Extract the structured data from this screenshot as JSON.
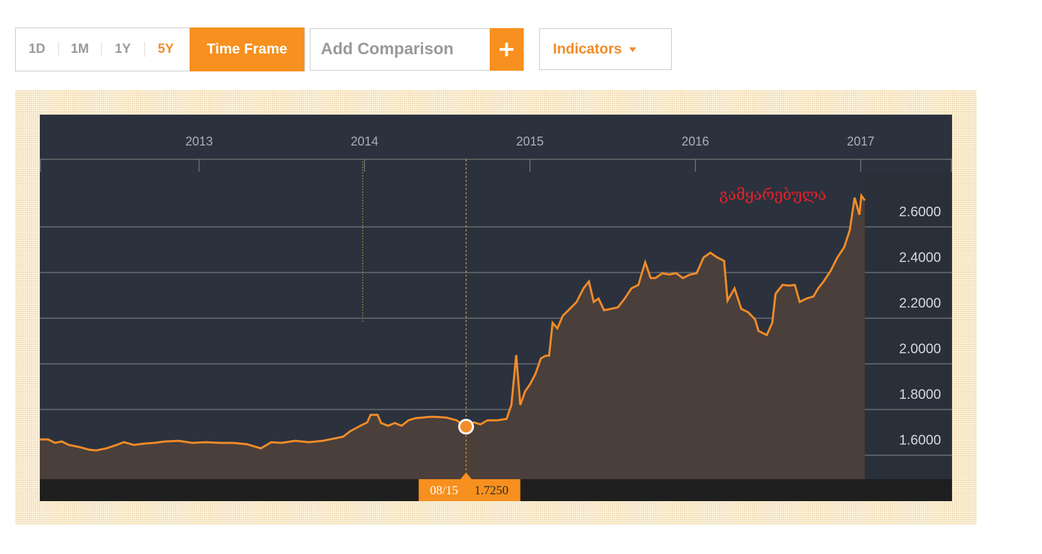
{
  "toolbar": {
    "ranges": [
      "1D",
      "1M",
      "1Y",
      "5Y"
    ],
    "time_frame": "Time Frame",
    "comparison_placeholder": "Add Comparison",
    "indicators": "Indicators"
  },
  "chart_data": {
    "type": "line",
    "annotation": "გამყარებულა",
    "highlight": {
      "date": "08/15",
      "value_label": "1.7250"
    },
    "x": [
      2012.037,
      2012.087,
      2012.129,
      2012.17,
      2012.212,
      2012.274,
      2012.336,
      2012.378,
      2012.44,
      2012.502,
      2012.544,
      2012.606,
      2012.668,
      2012.73,
      2012.793,
      2012.876,
      2012.959,
      2013.041,
      2013.124,
      2013.207,
      2013.29,
      2013.373,
      2013.436,
      2013.498,
      2013.581,
      2013.664,
      2013.747,
      2013.83,
      2013.871,
      2013.913,
      2013.975,
      2014.017,
      2014.037,
      2014.079,
      2014.1,
      2014.141,
      2014.183,
      2014.224,
      2014.266,
      2014.307,
      2014.349,
      2014.39,
      2014.432,
      2014.494,
      2014.556,
      2014.614,
      2014.66,
      2014.701,
      2014.743,
      2014.805,
      2014.859,
      2014.888,
      2014.917,
      2014.942,
      2014.971,
      2015.0,
      2015.033,
      2015.066,
      2015.095,
      2015.116,
      2015.137,
      2015.166,
      2015.199,
      2015.241,
      2015.282,
      2015.324,
      2015.357,
      2015.386,
      2015.415,
      2015.448,
      2015.49,
      2015.531,
      2015.573,
      2015.614,
      2015.656,
      2015.697,
      2015.73,
      2015.759,
      2015.801,
      2015.842,
      2015.884,
      2015.925,
      2015.967,
      2016.008,
      2016.05,
      2016.091,
      2016.133,
      2016.174,
      2016.195,
      2016.237,
      2016.278,
      2016.32,
      2016.361,
      2016.382,
      2016.432,
      2016.465,
      2016.485,
      2016.527,
      2016.568,
      2016.602,
      2016.631,
      2016.672,
      2016.714,
      2016.743,
      2016.776,
      2016.817,
      2016.859,
      2016.9,
      2016.934,
      2016.963,
      2016.992,
      2017.004,
      2017.025
    ],
    "series": [
      {
        "color": "#f28c28",
        "values": [
          1.669,
          1.669,
          1.654,
          1.66,
          1.645,
          1.636,
          1.624,
          1.621,
          1.63,
          1.645,
          1.657,
          1.645,
          1.651,
          1.654,
          1.66,
          1.663,
          1.654,
          1.657,
          1.654,
          1.654,
          1.648,
          1.63,
          1.657,
          1.654,
          1.663,
          1.657,
          1.663,
          1.675,
          1.681,
          1.705,
          1.729,
          1.744,
          1.777,
          1.777,
          1.741,
          1.729,
          1.741,
          1.729,
          1.753,
          1.762,
          1.765,
          1.768,
          1.768,
          1.765,
          1.753,
          1.725,
          1.744,
          1.735,
          1.753,
          1.753,
          1.759,
          1.82,
          2.039,
          1.82,
          1.88,
          1.91,
          1.955,
          2.024,
          2.036,
          2.036,
          2.18,
          2.156,
          2.211,
          2.241,
          2.271,
          2.331,
          2.361,
          2.271,
          2.286,
          2.235,
          2.241,
          2.247,
          2.286,
          2.331,
          2.346,
          2.445,
          2.376,
          2.376,
          2.397,
          2.391,
          2.397,
          2.376,
          2.391,
          2.397,
          2.466,
          2.487,
          2.466,
          2.451,
          2.277,
          2.331,
          2.241,
          2.226,
          2.195,
          2.144,
          2.126,
          2.18,
          2.307,
          2.346,
          2.343,
          2.346,
          2.271,
          2.286,
          2.295,
          2.331,
          2.361,
          2.406,
          2.466,
          2.511,
          2.586,
          2.728,
          2.653,
          2.737,
          2.716
        ]
      }
    ],
    "xlim": [
      2012.037,
      2017.552
    ],
    "xticks": [
      2013,
      2014,
      2015,
      2016,
      2017
    ],
    "ylim": [
      1.495,
      2.842
    ],
    "yticks": [
      {
        "value": 1.6,
        "label": "1.6000"
      },
      {
        "value": 1.8,
        "label": "1.8000"
      },
      {
        "value": 2.0,
        "label": "2.0000"
      },
      {
        "value": 2.2,
        "label": "2.2000"
      },
      {
        "value": 2.4,
        "label": "2.4000"
      },
      {
        "value": 2.6,
        "label": "2.6000"
      }
    ],
    "grid": true
  }
}
